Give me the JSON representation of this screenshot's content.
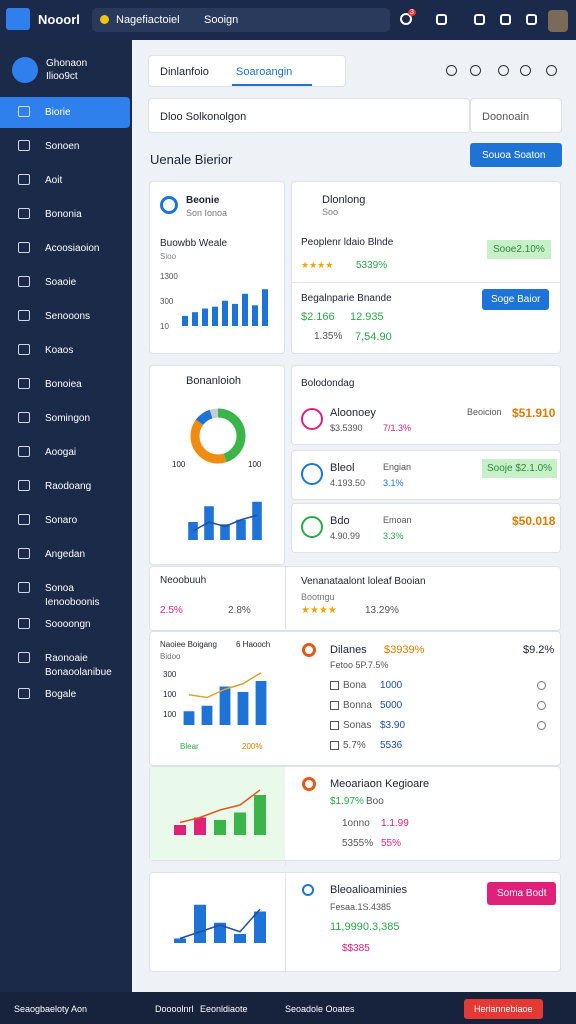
{
  "header": {
    "brand": "Nooorl",
    "search_tag": "Nagefiactoiel",
    "search": "Sooign",
    "badge": "3"
  },
  "sidebar": {
    "user": "Ghonaon",
    "user_sub": "Ilioo9ct",
    "nav": [
      {
        "label": "Biorie"
      },
      {
        "label": "Sonoen"
      },
      {
        "label": "Aoit"
      },
      {
        "label": "Bononia"
      },
      {
        "label": "Acoosiaoion"
      },
      {
        "label": "Soaoie"
      },
      {
        "label": "Senooons"
      },
      {
        "label": "Koaos"
      },
      {
        "label": "Bonoiea"
      },
      {
        "label": "Somingon"
      },
      {
        "label": "Aoogai"
      },
      {
        "label": "Raodoang"
      },
      {
        "label": "Sonaro"
      },
      {
        "label": "Angedan"
      },
      {
        "label": "Sonoa",
        "sub": "Ienooboonis"
      },
      {
        "label": "Soooongn"
      },
      {
        "label": "Raonoaie",
        "sub": "Bonaoolanibue"
      },
      {
        "label": "Bogale"
      }
    ]
  },
  "tabs": [
    "Dinlanfoio",
    "Soaroangin"
  ],
  "filter": "Dloo Solkonolgon",
  "select": "Doonoain",
  "section_title": "Uenale Bierior",
  "section_button": "Souoa Soaton",
  "card_a": {
    "title": "Beonie",
    "sub": "Son Ionoa",
    "chart_title": "Buowbb Weale",
    "chart_sub": "Sioo",
    "axis": [
      "1300",
      "300",
      "10"
    ],
    "ylim": [
      0,
      100
    ],
    "values": [
      22,
      30,
      38,
      42,
      55,
      48,
      70,
      45,
      80
    ],
    "color": "#1e74d6"
  },
  "list_card": {
    "title": "Dlonlong",
    "sub": "Soo",
    "item1": {
      "name": "Peoplenr ldaio Blnde",
      "stars": "★★★★",
      "rating": "5339%",
      "badge": "Sooe2.10%"
    },
    "item2": {
      "name": "Begalnparie Bnande",
      "v1": "$2.166",
      "v2": "12.935",
      "v3": "1.35%",
      "v4": "7,54.90",
      "button": "Soge Baior"
    }
  },
  "card_b": {
    "title": "Bonanloioh",
    "donut": [
      45,
      40,
      10,
      5
    ],
    "donut_colors": [
      "#3bb54a",
      "#f08c12",
      "#1e74d6",
      "#c9ccd2"
    ],
    "axis": [
      "100",
      "100"
    ],
    "ylim": [
      0,
      100
    ],
    "values": [
      40,
      75,
      35,
      45,
      85
    ],
    "line": [
      20,
      40,
      30,
      45,
      55
    ],
    "color": "#1e74d6"
  },
  "list2": {
    "title": "Bolodondag",
    "items": [
      {
        "name": "Aloonoey",
        "sub": "$3.5390",
        "pct": "7/1.3%",
        "label": "Beoicion",
        "value": "$51.910",
        "color": "#e0217a"
      },
      {
        "name": "Bleol",
        "sub": "4.193.50",
        "pct": "3.1%",
        "label": "Engian",
        "value": "Sooje $2.1.0%",
        "color": "#1e74d6"
      },
      {
        "name": "Bdo",
        "sub": "4.90.99",
        "pct": "3.3%",
        "label": "Emoan",
        "value": "$50.018",
        "color": "#2aa84a"
      }
    ]
  },
  "panel1": {
    "left_title": "Neoobuuh",
    "left_v1": "2.5%",
    "left_v2": "2.8%",
    "title": "Venanataalont loleaf Booian",
    "sub": "Bootngu",
    "stars": "★★★★",
    "rating": "13.29%"
  },
  "panel2": {
    "chart_title": "Naoiee Boigang",
    "chart_sub": "Bidoo",
    "chart_right": "6 Haooch",
    "axis": [
      "300",
      "100",
      "100"
    ],
    "ylim": [
      0,
      100
    ],
    "values": [
      25,
      35,
      70,
      60,
      80
    ],
    "line": [
      55,
      50,
      65,
      75,
      95
    ],
    "color": "#1e74d6",
    "legend": [
      "Blear",
      "200%"
    ],
    "title": "Dilanes",
    "v1": "$3939%",
    "v2": "$9.2%",
    "sub": "Fetoo 5P.7.5%",
    "rows": [
      [
        "Bona",
        "1000"
      ],
      [
        "Bonna",
        "5000"
      ],
      [
        "Sonas",
        "$3.90"
      ],
      [
        "5.7%",
        "5536"
      ]
    ]
  },
  "panel3": {
    "ylim": [
      0,
      100
    ],
    "values": [
      20,
      35,
      30,
      45,
      80
    ],
    "line": [
      25,
      35,
      50,
      60,
      90
    ],
    "bar_colors": [
      "#e0217a",
      "#e0217a",
      "#3bb54a",
      "#3bb54a",
      "#3bb54a"
    ],
    "title": "Meoariaon Kegioare",
    "v1": "$1.97%",
    "v2": "Boo",
    "rows": [
      [
        "1onno",
        "1.1.99"
      ],
      [
        "5355%",
        "55%"
      ]
    ]
  },
  "panel4": {
    "ylim": [
      0,
      100
    ],
    "values": [
      10,
      85,
      45,
      20,
      70
    ],
    "line": [
      10,
      25,
      40,
      25,
      75
    ],
    "color": "#1e74d6",
    "title": "Bleoalioaminies",
    "sub": "Fesaa.1S.4385",
    "v1": "11,9990.3,385",
    "v2": "$$385",
    "button": "Soma Bodt"
  },
  "footer": {
    "left": "Seaogbaeloty Aon",
    "items": [
      "Doooolnrl",
      "Eeonldiaote",
      "Seoadole Ooates"
    ],
    "button": "Heriannebiaoe"
  }
}
